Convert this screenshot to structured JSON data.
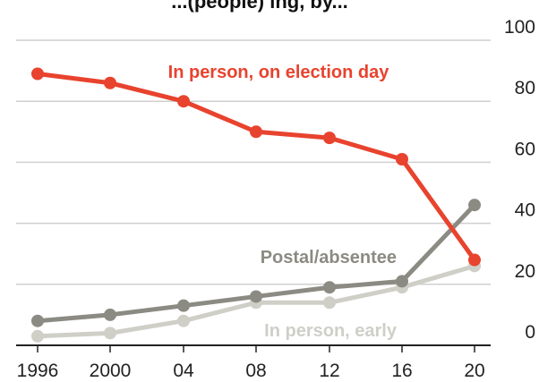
{
  "title_fragment": "...(people) ing, by...",
  "chart_data": {
    "type": "line",
    "categories": [
      "1996",
      "2000",
      "04",
      "08",
      "12",
      "16",
      "20"
    ],
    "ylim": [
      0,
      100
    ],
    "yticks": [
      "100",
      "80",
      "60",
      "40",
      "20",
      "0"
    ],
    "grid": true,
    "series": [
      {
        "name": "In person, on election day",
        "values": [
          89,
          86,
          80,
          70,
          68,
          61,
          28
        ],
        "color": "#e8432e"
      },
      {
        "name": "Postal/absentee",
        "values": [
          8,
          10,
          13,
          16,
          19,
          21,
          46
        ],
        "color": "#8c8b83"
      },
      {
        "name": "In person, early",
        "values": [
          3,
          4,
          8,
          14,
          14,
          19,
          26
        ],
        "color": "#cfcfc8"
      }
    ]
  }
}
